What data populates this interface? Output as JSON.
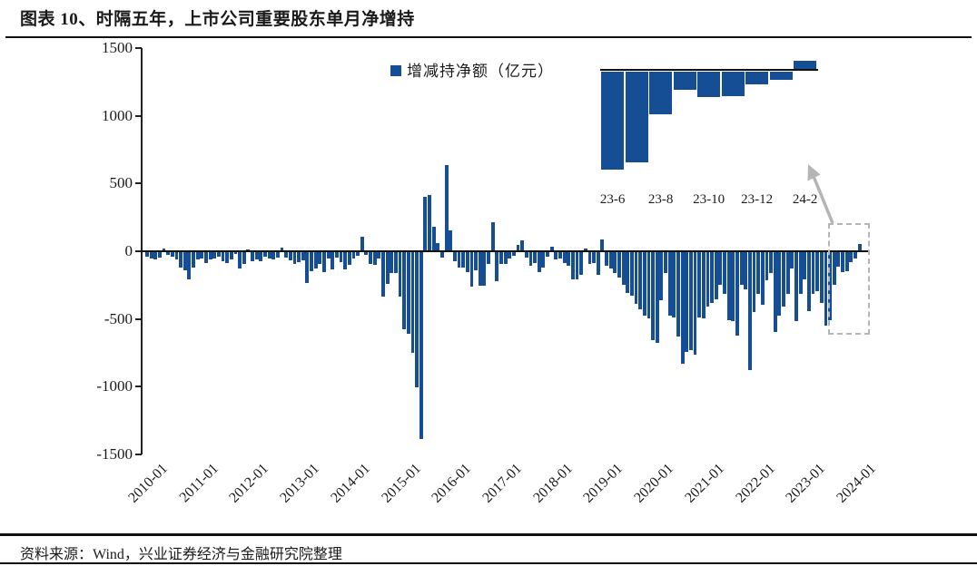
{
  "header": {
    "title": "图表 10、时隔五年，上市公司重要股东单月净增持"
  },
  "footer": {
    "source": "资料来源：Wind，兴业证券经济与金融研究院整理"
  },
  "colors": {
    "bar": "#164E96",
    "axis": "#1A1A1A",
    "annotation": "#B5B5B5",
    "text": "#1A1A1A"
  },
  "chart_data": [
    {
      "type": "bar",
      "name": "main-monthly-net-change",
      "legend": [
        "增减持净额（亿元）"
      ],
      "legend_position": "top-center",
      "ylim": [
        -1500,
        1500
      ],
      "yticks": [
        1500,
        1000,
        500,
        0,
        -500,
        -1000,
        -1500
      ],
      "xticks": [
        "2010-01",
        "2011-01",
        "2012-01",
        "2013-01",
        "2014-01",
        "2015-01",
        "2016-01",
        "2017-01",
        "2018-01",
        "2019-01",
        "2020-01",
        "2021-01",
        "2022-01",
        "2023-01",
        "2024-01"
      ],
      "x_start": "2010-01",
      "x_end": "2024-02",
      "x_frequency": "monthly",
      "grid": false,
      "values": [
        -34,
        -45,
        -56,
        -40,
        22,
        -22,
        -34,
        -56,
        -112,
        -134,
        -201,
        -112,
        -56,
        -45,
        -78,
        -56,
        -45,
        -34,
        -67,
        -78,
        -56,
        -11,
        -123,
        -90,
        15,
        -67,
        -56,
        -67,
        -34,
        -45,
        -56,
        -40,
        28,
        -40,
        -62,
        -85,
        -74,
        -62,
        -230,
        -140,
        -118,
        -85,
        -150,
        -50,
        -129,
        -40,
        -74,
        -129,
        -96,
        -50,
        -30,
        105,
        -18,
        -85,
        -96,
        -50,
        -330,
        -235,
        -157,
        -157,
        -330,
        -570,
        -604,
        -745,
        -1000,
        -1382,
        403,
        414,
        179,
        60,
        -40,
        638,
        157,
        -67,
        -112,
        -112,
        -145,
        -257,
        -134,
        -246,
        -246,
        -90,
        212,
        -212,
        -90,
        -90,
        -45,
        -30,
        50,
        78,
        -40,
        -100,
        -78,
        -145,
        -112,
        -34,
        34,
        -56,
        -45,
        -78,
        -100,
        -201,
        -201,
        -168,
        22,
        -90,
        -78,
        -168,
        90,
        -100,
        -123,
        -157,
        -190,
        -240,
        -300,
        -322,
        -380,
        -423,
        -470,
        -490,
        -647,
        -669,
        -356,
        -154,
        -468,
        -479,
        -624,
        -825,
        -736,
        -725,
        -758,
        -479,
        -490,
        -400,
        -378,
        -345,
        -244,
        -311,
        -501,
        -512,
        -613,
        -244,
        -277,
        -870,
        -445,
        -310,
        -390,
        -210,
        -155,
        -590,
        -470,
        -400,
        -310,
        -120,
        -512,
        -311,
        -200,
        -434,
        -311,
        -289,
        -378,
        -545,
        -505,
        -240,
        -105,
        -145,
        -140,
        -75,
        -50,
        52
      ]
    },
    {
      "type": "bar",
      "name": "inset-recent-months",
      "categories": [
        "23-6",
        "23-7",
        "23-8",
        "23-9",
        "23-10",
        "23-11",
        "23-12",
        "24-1",
        "24-2"
      ],
      "values": [
        -545,
        -505,
        -240,
        -105,
        -145,
        -140,
        -75,
        -50,
        52
      ],
      "tick_labels": [
        "23-6",
        "23-8",
        "23-10",
        "23-12",
        "24-2"
      ],
      "zero_line": 0
    }
  ],
  "annotations": {
    "highlight_box_range": "2023-06 to 2024-02",
    "arrow": "from highlight box up toward inset chart"
  }
}
